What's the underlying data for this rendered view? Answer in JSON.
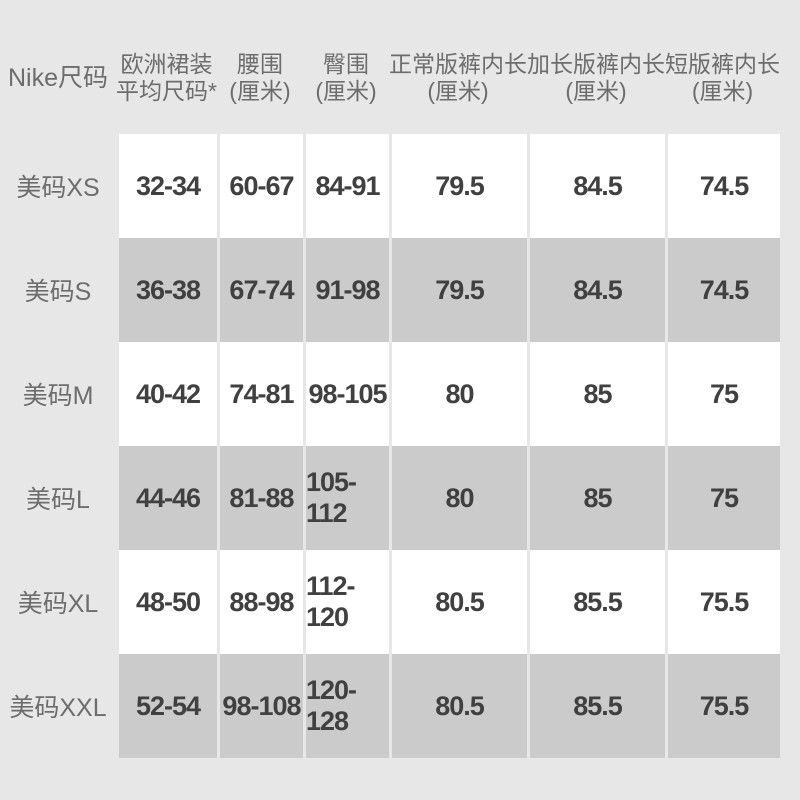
{
  "colors": {
    "page_background": "#e8e7e7",
    "stripe_gray": "#cbcbcb",
    "cell_white": "#ffffff",
    "value_text": "#404040",
    "label_text": "#6d6d6d"
  },
  "chart_data": {
    "type": "table",
    "header": {
      "col0": "Nike尺码",
      "cols": [
        {
          "line1": "欧洲裙装",
          "line2": "平均尺码*"
        },
        {
          "line1": "腰围",
          "line2": "(厘米)"
        },
        {
          "line1": "臀围",
          "line2": "(厘米)"
        },
        {
          "line1": "正常版裤内长",
          "line2": "(厘米)"
        },
        {
          "line1": "加长版裤内长",
          "line2": "(厘米)"
        },
        {
          "line1": "短版裤内长",
          "line2": "(厘米)"
        }
      ]
    },
    "rows": [
      {
        "label": "美码XS",
        "values": [
          "32-34",
          "60-67",
          "84-91",
          "79.5",
          "84.5",
          "74.5"
        ]
      },
      {
        "label": "美码S",
        "values": [
          "36-38",
          "67-74",
          "91-98",
          "79.5",
          "84.5",
          "74.5"
        ]
      },
      {
        "label": "美码M",
        "values": [
          "40-42",
          "74-81",
          "98-105",
          "80",
          "85",
          "75"
        ]
      },
      {
        "label": "美码L",
        "values": [
          "44-46",
          "81-88",
          "105-112",
          "80",
          "85",
          "75"
        ]
      },
      {
        "label": "美码XL",
        "values": [
          "48-50",
          "88-98",
          "112-120",
          "80.5",
          "85.5",
          "75.5"
        ]
      },
      {
        "label": "美码XXL",
        "values": [
          "52-54",
          "98-108",
          "120-128",
          "80.5",
          "85.5",
          "75.5"
        ]
      }
    ]
  }
}
